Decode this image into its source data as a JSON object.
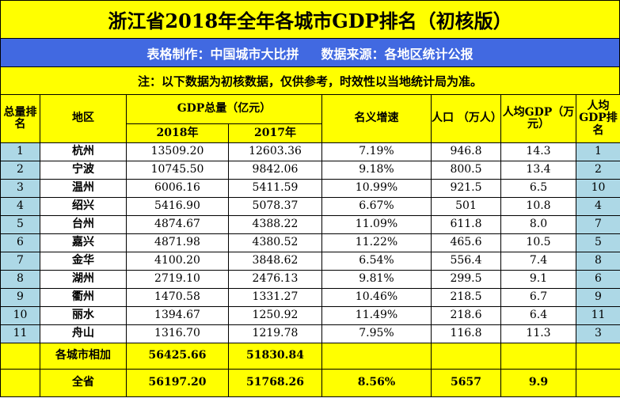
{
  "title": "浙江省2018年全年各城市GDP排名（初核版）",
  "credit": {
    "maker": "表格制作：中国城市大比拼",
    "source": "数据来源：各地区统计公报"
  },
  "note": "注：以下数据为初核数据，仅供参考，时效性以当地统计局为准。",
  "headers": {
    "rank": "总量排名",
    "region": "地区",
    "gdp": "GDP总量（亿元）",
    "y2018": "2018年",
    "y2017": "2017年",
    "growth": "名义增速",
    "pop": "人口 （万人）",
    "per_capita": "人均GDP（万元）",
    "per_capita_rank": "人均GDP排名"
  },
  "rows": [
    {
      "rank": "1",
      "region": "杭州",
      "gdp2018": "13509.20",
      "gdp2017": "12603.36",
      "growth": "7.19%",
      "pop": "946.8",
      "per_capita": "14.3",
      "pc_rank": "1"
    },
    {
      "rank": "2",
      "region": "宁波",
      "gdp2018": "10745.50",
      "gdp2017": "9842.06",
      "growth": "9.18%",
      "pop": "800.5",
      "per_capita": "13.4",
      "pc_rank": "2"
    },
    {
      "rank": "3",
      "region": "温州",
      "gdp2018": "6006.16",
      "gdp2017": "5411.59",
      "growth": "10.99%",
      "pop": "921.5",
      "per_capita": "6.5",
      "pc_rank": "10"
    },
    {
      "rank": "4",
      "region": "绍兴",
      "gdp2018": "5416.90",
      "gdp2017": "5078.37",
      "growth": "6.67%",
      "pop": "501",
      "per_capita": "10.8",
      "pc_rank": "4"
    },
    {
      "rank": "5",
      "region": "台州",
      "gdp2018": "4874.67",
      "gdp2017": "4388.22",
      "growth": "11.09%",
      "pop": "611.8",
      "per_capita": "8.0",
      "pc_rank": "7"
    },
    {
      "rank": "6",
      "region": "嘉兴",
      "gdp2018": "4871.98",
      "gdp2017": "4380.52",
      "growth": "11.22%",
      "pop": "465.6",
      "per_capita": "10.5",
      "pc_rank": "5"
    },
    {
      "rank": "7",
      "region": "金华",
      "gdp2018": "4100.20",
      "gdp2017": "3848.62",
      "growth": "6.54%",
      "pop": "556.4",
      "per_capita": "7.4",
      "pc_rank": "8"
    },
    {
      "rank": "8",
      "region": "湖州",
      "gdp2018": "2719.10",
      "gdp2017": "2476.13",
      "growth": "9.81%",
      "pop": "299.5",
      "per_capita": "9.1",
      "pc_rank": "6"
    },
    {
      "rank": "9",
      "region": "衢州",
      "gdp2018": "1470.58",
      "gdp2017": "1331.27",
      "growth": "10.46%",
      "pop": "218.5",
      "per_capita": "6.7",
      "pc_rank": "9"
    },
    {
      "rank": "10",
      "region": "丽水",
      "gdp2018": "1394.67",
      "gdp2017": "1250.92",
      "growth": "11.49%",
      "pop": "218.6",
      "per_capita": "6.4",
      "pc_rank": "11"
    },
    {
      "rank": "11",
      "region": "舟山",
      "gdp2018": "1316.70",
      "gdp2017": "1219.78",
      "growth": "7.95%",
      "pop": "116.8",
      "per_capita": "11.3",
      "pc_rank": "3"
    }
  ],
  "sum_row": {
    "label": "各城市相加",
    "gdp2018": "56425.66",
    "gdp2017": "51830.84"
  },
  "total_row": {
    "label": "全省",
    "gdp2018": "56197.20",
    "gdp2017": "51768.26",
    "growth": "8.56%",
    "pop": "5657",
    "per_capita": "9.9"
  },
  "colors": {
    "header_yellow": "#ffff00",
    "credit_blue": "#4169e1",
    "rank_blue": "#add8e6"
  }
}
